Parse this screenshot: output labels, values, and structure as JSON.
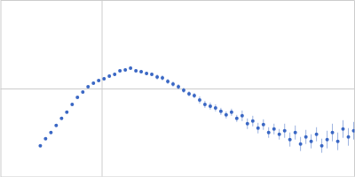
{
  "chart_data": {
    "type": "scatter",
    "color": "#3a67c4",
    "marker": "circle",
    "grid": true,
    "tick_labels": false,
    "xlim": [
      0,
      0.35
    ],
    "xticks": [
      0.1
    ],
    "ylim": [
      0,
      2
    ],
    "yticks": [
      1
    ],
    "x": [
      0.0394,
      0.0446,
      0.0499,
      0.0551,
      0.0604,
      0.0656,
      0.0709,
      0.0761,
      0.0814,
      0.0866,
      0.0919,
      0.0971,
      0.1024,
      0.1076,
      0.1129,
      0.1181,
      0.1234,
      0.1286,
      0.1339,
      0.1391,
      0.1444,
      0.1496,
      0.1549,
      0.1601,
      0.1654,
      0.1706,
      0.1759,
      0.1811,
      0.1864,
      0.1916,
      0.1969,
      0.2021,
      0.2074,
      0.2126,
      0.2179,
      0.2231,
      0.2284,
      0.2336,
      0.2389,
      0.2441,
      0.2494,
      0.2546,
      0.2599,
      0.2651,
      0.2704,
      0.2756,
      0.2809,
      0.2861,
      0.2914,
      0.2966,
      0.3019,
      0.3071,
      0.3124,
      0.3176,
      0.3229,
      0.3281,
      0.3334,
      0.3386,
      0.3439,
      0.3491
    ],
    "values": [
      0.35,
      0.43,
      0.5,
      0.58,
      0.66,
      0.73,
      0.82,
      0.9,
      0.96,
      1.02,
      1.06,
      1.09,
      1.11,
      1.14,
      1.16,
      1.2,
      1.21,
      1.23,
      1.2,
      1.19,
      1.17,
      1.16,
      1.13,
      1.12,
      1.08,
      1.05,
      1.02,
      0.98,
      0.94,
      0.92,
      0.87,
      0.82,
      0.8,
      0.78,
      0.74,
      0.7,
      0.73,
      0.66,
      0.69,
      0.6,
      0.63,
      0.55,
      0.59,
      0.5,
      0.54,
      0.48,
      0.52,
      0.42,
      0.5,
      0.37,
      0.45,
      0.4,
      0.48,
      0.35,
      0.42,
      0.5,
      0.4,
      0.54,
      0.45,
      0.52
    ],
    "errors": [
      0.01,
      0.01,
      0.01,
      0.01,
      0.01,
      0.01,
      0.01,
      0.01,
      0.01,
      0.01,
      0.01,
      0.01,
      0.02,
      0.02,
      0.02,
      0.02,
      0.02,
      0.02,
      0.02,
      0.02,
      0.02,
      0.02,
      0.03,
      0.03,
      0.03,
      0.03,
      0.03,
      0.03,
      0.03,
      0.03,
      0.04,
      0.04,
      0.04,
      0.04,
      0.04,
      0.04,
      0.04,
      0.04,
      0.06,
      0.06,
      0.06,
      0.06,
      0.06,
      0.06,
      0.06,
      0.06,
      0.08,
      0.08,
      0.08,
      0.08,
      0.08,
      0.08,
      0.08,
      0.08,
      0.1,
      0.1,
      0.1,
      0.1,
      0.1,
      0.1
    ]
  }
}
